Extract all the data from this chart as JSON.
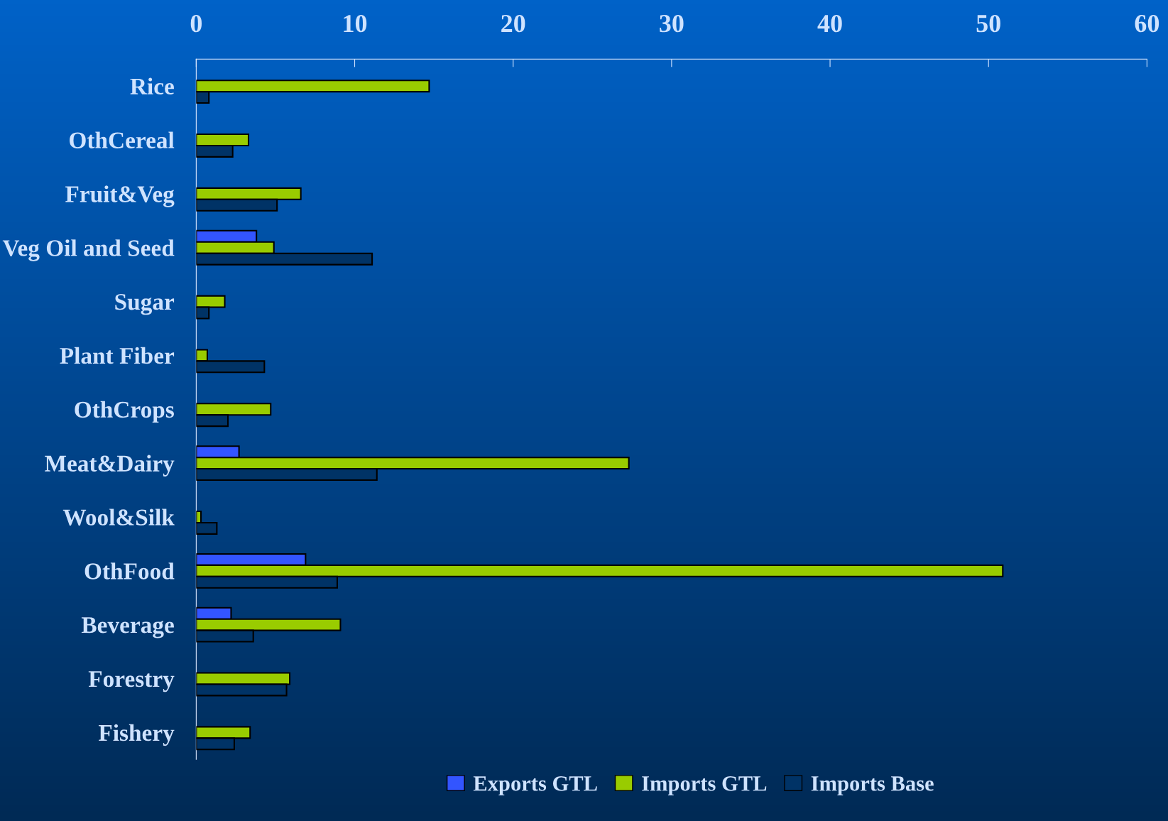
{
  "chart_data": {
    "type": "bar",
    "orientation": "horizontal",
    "categories": [
      "Rice",
      "OthCereal",
      "Fruit&Veg",
      "Veg Oil and Seed",
      "Sugar",
      "Plant Fiber",
      "OthCrops",
      "Meat&Dairy",
      "Wool&Silk",
      "OthFood",
      "Beverage",
      "Forestry",
      "Fishery"
    ],
    "series": [
      {
        "name": "Exports GTL",
        "color": "#3355ff",
        "values": [
          null,
          null,
          null,
          3.8,
          null,
          null,
          null,
          2.7,
          null,
          6.9,
          2.2,
          null,
          null
        ]
      },
      {
        "name": "Imports GTL",
        "color": "#99cc00",
        "values": [
          14.7,
          3.3,
          6.6,
          4.9,
          1.8,
          0.7,
          4.7,
          27.3,
          0.3,
          50.9,
          9.1,
          5.9,
          3.4
        ]
      },
      {
        "name": "Imports Base",
        "color": "#003366",
        "values": [
          0.8,
          2.3,
          5.1,
          11.1,
          0.8,
          4.3,
          2.0,
          11.4,
          1.3,
          8.9,
          3.6,
          5.7,
          2.4
        ]
      }
    ],
    "xlim": [
      0,
      60
    ],
    "xticks": [
      0,
      10,
      20,
      30,
      40,
      50,
      60
    ],
    "grid": false,
    "legend": "bottom"
  }
}
